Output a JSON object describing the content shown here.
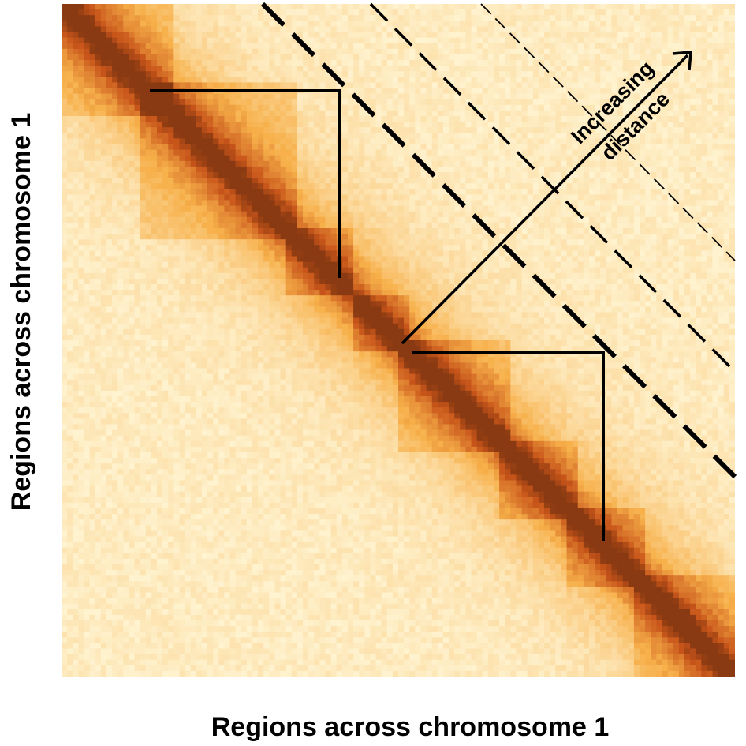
{
  "figure": {
    "x_axis_label": "Regions across chromosome 1",
    "y_axis_label": "Regions across chromosome 1",
    "annotation_line1": "Increasing",
    "annotation_line2": "distance"
  },
  "colors": {
    "background": "#ffffff",
    "heatmap_low": "#fff6d6",
    "heatmap_mid": "#f7b04a",
    "heatmap_high": "#c8551a",
    "heatmap_diagonal": "#8a3a12",
    "annotation": "#000000"
  },
  "heatmap": {
    "type": "Hi-C contact map",
    "description_of_structure": "diagonal-dominant with two highlighted domains"
  }
}
